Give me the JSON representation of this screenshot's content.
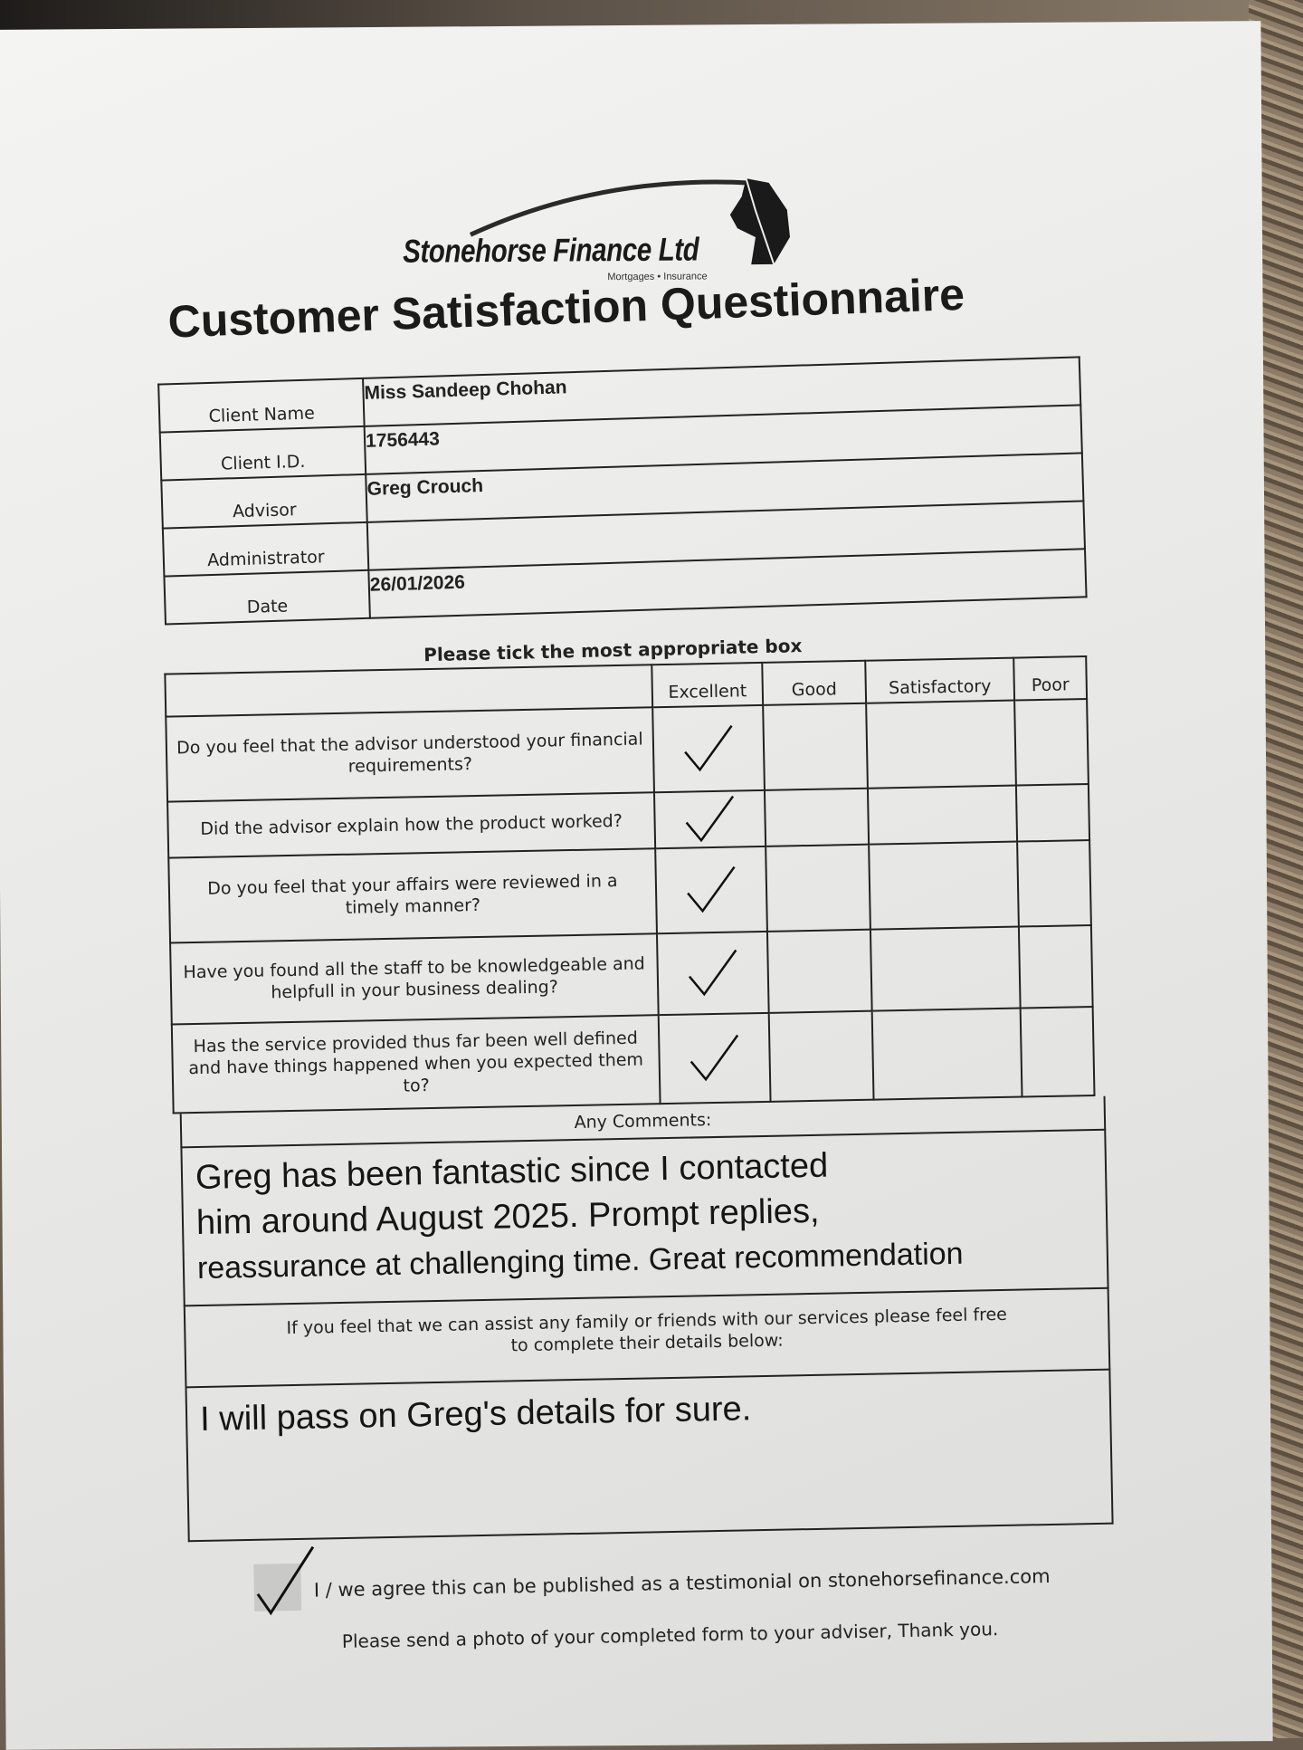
{
  "header": {
    "company": "Stonehorse Finance Ltd",
    "tagline": "Mortgages • Insurance",
    "logo_icon": "horse-head-icon",
    "title": "Customer Satisfaction Questionnaire"
  },
  "client_info": [
    {
      "label": "Client Name",
      "value": "Miss Sandeep Chohan"
    },
    {
      "label": "Client I.D.",
      "value": "1756443"
    },
    {
      "label": "Advisor",
      "value": "Greg Crouch"
    },
    {
      "label": "Administrator",
      "value": ""
    },
    {
      "label": "Date",
      "value": "26/01/2026"
    }
  ],
  "ratings": {
    "instruction": "Please tick the most appropriate box",
    "columns": [
      "Excellent",
      "Good",
      "Satisfactory",
      "Poor"
    ],
    "questions": [
      {
        "text": "Do you feel that the advisor understood your financial requirements?",
        "selected": "Excellent"
      },
      {
        "text": "Did the advisor explain how the product worked?",
        "selected": "Excellent"
      },
      {
        "text": "Do you feel that your affairs were reviewed in a timely manner?",
        "selected": "Excellent"
      },
      {
        "text": "Have you found all the staff to be knowledgeable and helpfull in your business dealing?",
        "selected": "Excellent"
      },
      {
        "text": "Has the service provided thus far been well defined and have things happened when you expected them to?",
        "selected": "Excellent"
      }
    ]
  },
  "comments": {
    "label": "Any Comments:",
    "lines": [
      "Greg has been fantastic since I contacted",
      "him around August 2025. Prompt replies,",
      "reassurance at challenging time. Great recommendation"
    ]
  },
  "referral": {
    "prompt_line1": "If you feel that we can assist any family or friends with our services please feel free",
    "prompt_line2": "to complete their details below:",
    "answer": "I will pass on Greg's details for sure."
  },
  "footer": {
    "testimonial_consent": "I / we agree this can be published as a testimonial on stonehorsefinance.com",
    "testimonial_checked": true,
    "send_note": "Please send a photo of your completed form to your adviser, Thank you."
  }
}
